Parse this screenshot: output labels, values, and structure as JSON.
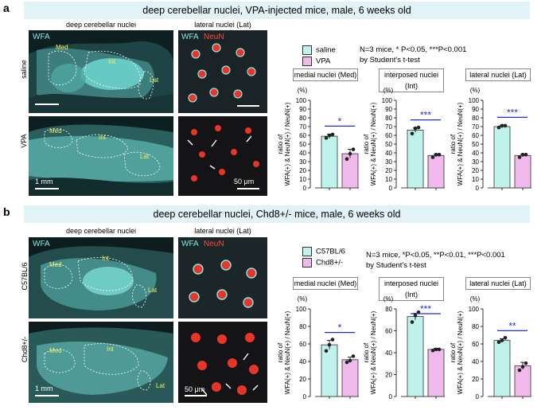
{
  "panel_a": {
    "letter": "a",
    "banner": "deep cerebellar nuclei, VPA-injected mice, male, 6 weeks old",
    "col1_title": "deep cerebellar nuclei",
    "col2_title": "lateral nuclei (Lat)",
    "row1_label": "saline",
    "row2_label": "VPA",
    "stain_wfa": "WFA",
    "stain_neun": "NeuN",
    "region_labels": [
      "Med",
      "Int",
      "Lat"
    ],
    "scale_1mm": "1 mm",
    "scale_50um": "50 μm",
    "legend": [
      {
        "label": "saline",
        "color": "#bff2ec"
      },
      {
        "label": "VPA",
        "color": "#f0b9ec"
      }
    ],
    "stats_line1": "N=3 mice, * P<0.05, ***P<0.001",
    "stats_line2": "by Student's t-test"
  },
  "panel_b": {
    "letter": "b",
    "banner": "deep cerebellar nuclei, Chd8+/- mice, male, 6 weeks old",
    "col1_title": "deep cerebellar nuclei",
    "col2_title": "lateral nuclei (Lat)",
    "row1_label": "C57BL/6",
    "row2_label": "Chd8+/-",
    "stain_wfa": "WFA",
    "stain_neun": "NeuN",
    "region_labels": [
      "Med",
      "Int",
      "Lat"
    ],
    "scale_1mm": "1 mm",
    "scale_50um": "50 μm",
    "legend": [
      {
        "label": "C57BL/6",
        "color": "#bff2ec"
      },
      {
        "label": "Chd8+/-",
        "color": "#f0b9ec"
      }
    ],
    "stats_line1": "N=3 mice, *P<0.05, **P<0.01, ***P<0.001",
    "stats_line2": "by Student's t-test"
  },
  "chart_data": [
    {
      "type": "bar",
      "title": "medial  nuclei (Med)",
      "categories": [
        "saline",
        "VPA"
      ],
      "values": [
        59,
        39
      ],
      "errors": [
        2.5,
        5
      ],
      "points": [
        [
          57,
          60,
          61
        ],
        [
          33,
          39,
          44
        ]
      ],
      "ylabel": "ratio of WFA(+) & NeuN(+) / NeuN(+)",
      "unit": "(%)",
      "ylim": [
        0,
        100
      ],
      "ticks": [
        0,
        10,
        20,
        30,
        40,
        50,
        60,
        70,
        80,
        90,
        100
      ],
      "sig": "*"
    },
    {
      "type": "bar",
      "title": "interposed nuclei (Int)",
      "categories": [
        "saline",
        "VPA"
      ],
      "values": [
        66,
        37
      ],
      "errors": [
        2.5,
        1.5
      ],
      "points": [
        [
          62,
          68,
          69
        ],
        [
          35,
          38,
          38
        ]
      ],
      "ylabel": "ratio of WFA(+) & NeuN(+) / NeuN(+)",
      "unit": "(%)",
      "ylim": [
        0,
        100
      ],
      "ticks": [
        0,
        10,
        20,
        30,
        40,
        50,
        60,
        70,
        80,
        90,
        100
      ],
      "sig": "***"
    },
    {
      "type": "bar",
      "title": "lateral nuclei (Lat)",
      "categories": [
        "saline",
        "VPA"
      ],
      "values": [
        70,
        37
      ],
      "errors": [
        1.5,
        1.5
      ],
      "points": [
        [
          69,
          71,
          71
        ],
        [
          35,
          38,
          38
        ]
      ],
      "ylabel": "ratio of WFA(+) & NeuN(+) / NeuN(+)",
      "unit": "(%)",
      "ylim": [
        0,
        100
      ],
      "ticks": [
        0,
        10,
        20,
        30,
        40,
        50,
        60,
        70,
        80,
        90,
        100
      ],
      "sig": "***"
    },
    {
      "type": "bar",
      "title": "medial  nuclei (Med)",
      "categories": [
        "C57BL/6",
        "Chd8+/-"
      ],
      "values": [
        59,
        42
      ],
      "errors": [
        5,
        3
      ],
      "points": [
        [
          52,
          59,
          65
        ],
        [
          39,
          41,
          46
        ]
      ],
      "ylabel": "ratio of WFA(+) & NeuN(+) / NeuN(+)",
      "unit": "(%)",
      "ylim": [
        0,
        100
      ],
      "ticks": [
        0,
        20,
        40,
        60,
        80,
        100
      ],
      "sig": "*"
    },
    {
      "type": "bar",
      "title": "interposed nuclei (Int)",
      "categories": [
        "C57BL/6",
        "Chd8+/-"
      ],
      "values": [
        73,
        43
      ],
      "errors": [
        3,
        1
      ],
      "points": [
        [
          68,
          74,
          77
        ],
        [
          42,
          43,
          43
        ]
      ],
      "ylabel": "ratio of WFA(+) & NeuN(+) / NeuN(+)",
      "unit": "(%)",
      "ylim": [
        0,
        80
      ],
      "ticks": [
        0,
        20,
        40,
        60,
        80
      ],
      "sig": "***"
    },
    {
      "type": "bar",
      "title": "lateral nuclei (Lat)",
      "categories": [
        "C57BL/6",
        "Chd8+/-"
      ],
      "values": [
        64,
        35
      ],
      "errors": [
        2,
        4
      ],
      "points": [
        [
          62,
          64,
          67
        ],
        [
          30,
          34,
          38
        ]
      ],
      "ylabel": "ratio of WFA(+) & NeuN(+) / NeuN(+)",
      "unit": "(%)",
      "ylim": [
        0,
        100
      ],
      "ticks": [
        0,
        20,
        40,
        60,
        80,
        100
      ],
      "sig": "**"
    }
  ],
  "colors": {
    "control": "#bff2ec",
    "treated": "#f0b9ec",
    "sig": "#1f2fd6",
    "banner": "#e2f3f7"
  }
}
